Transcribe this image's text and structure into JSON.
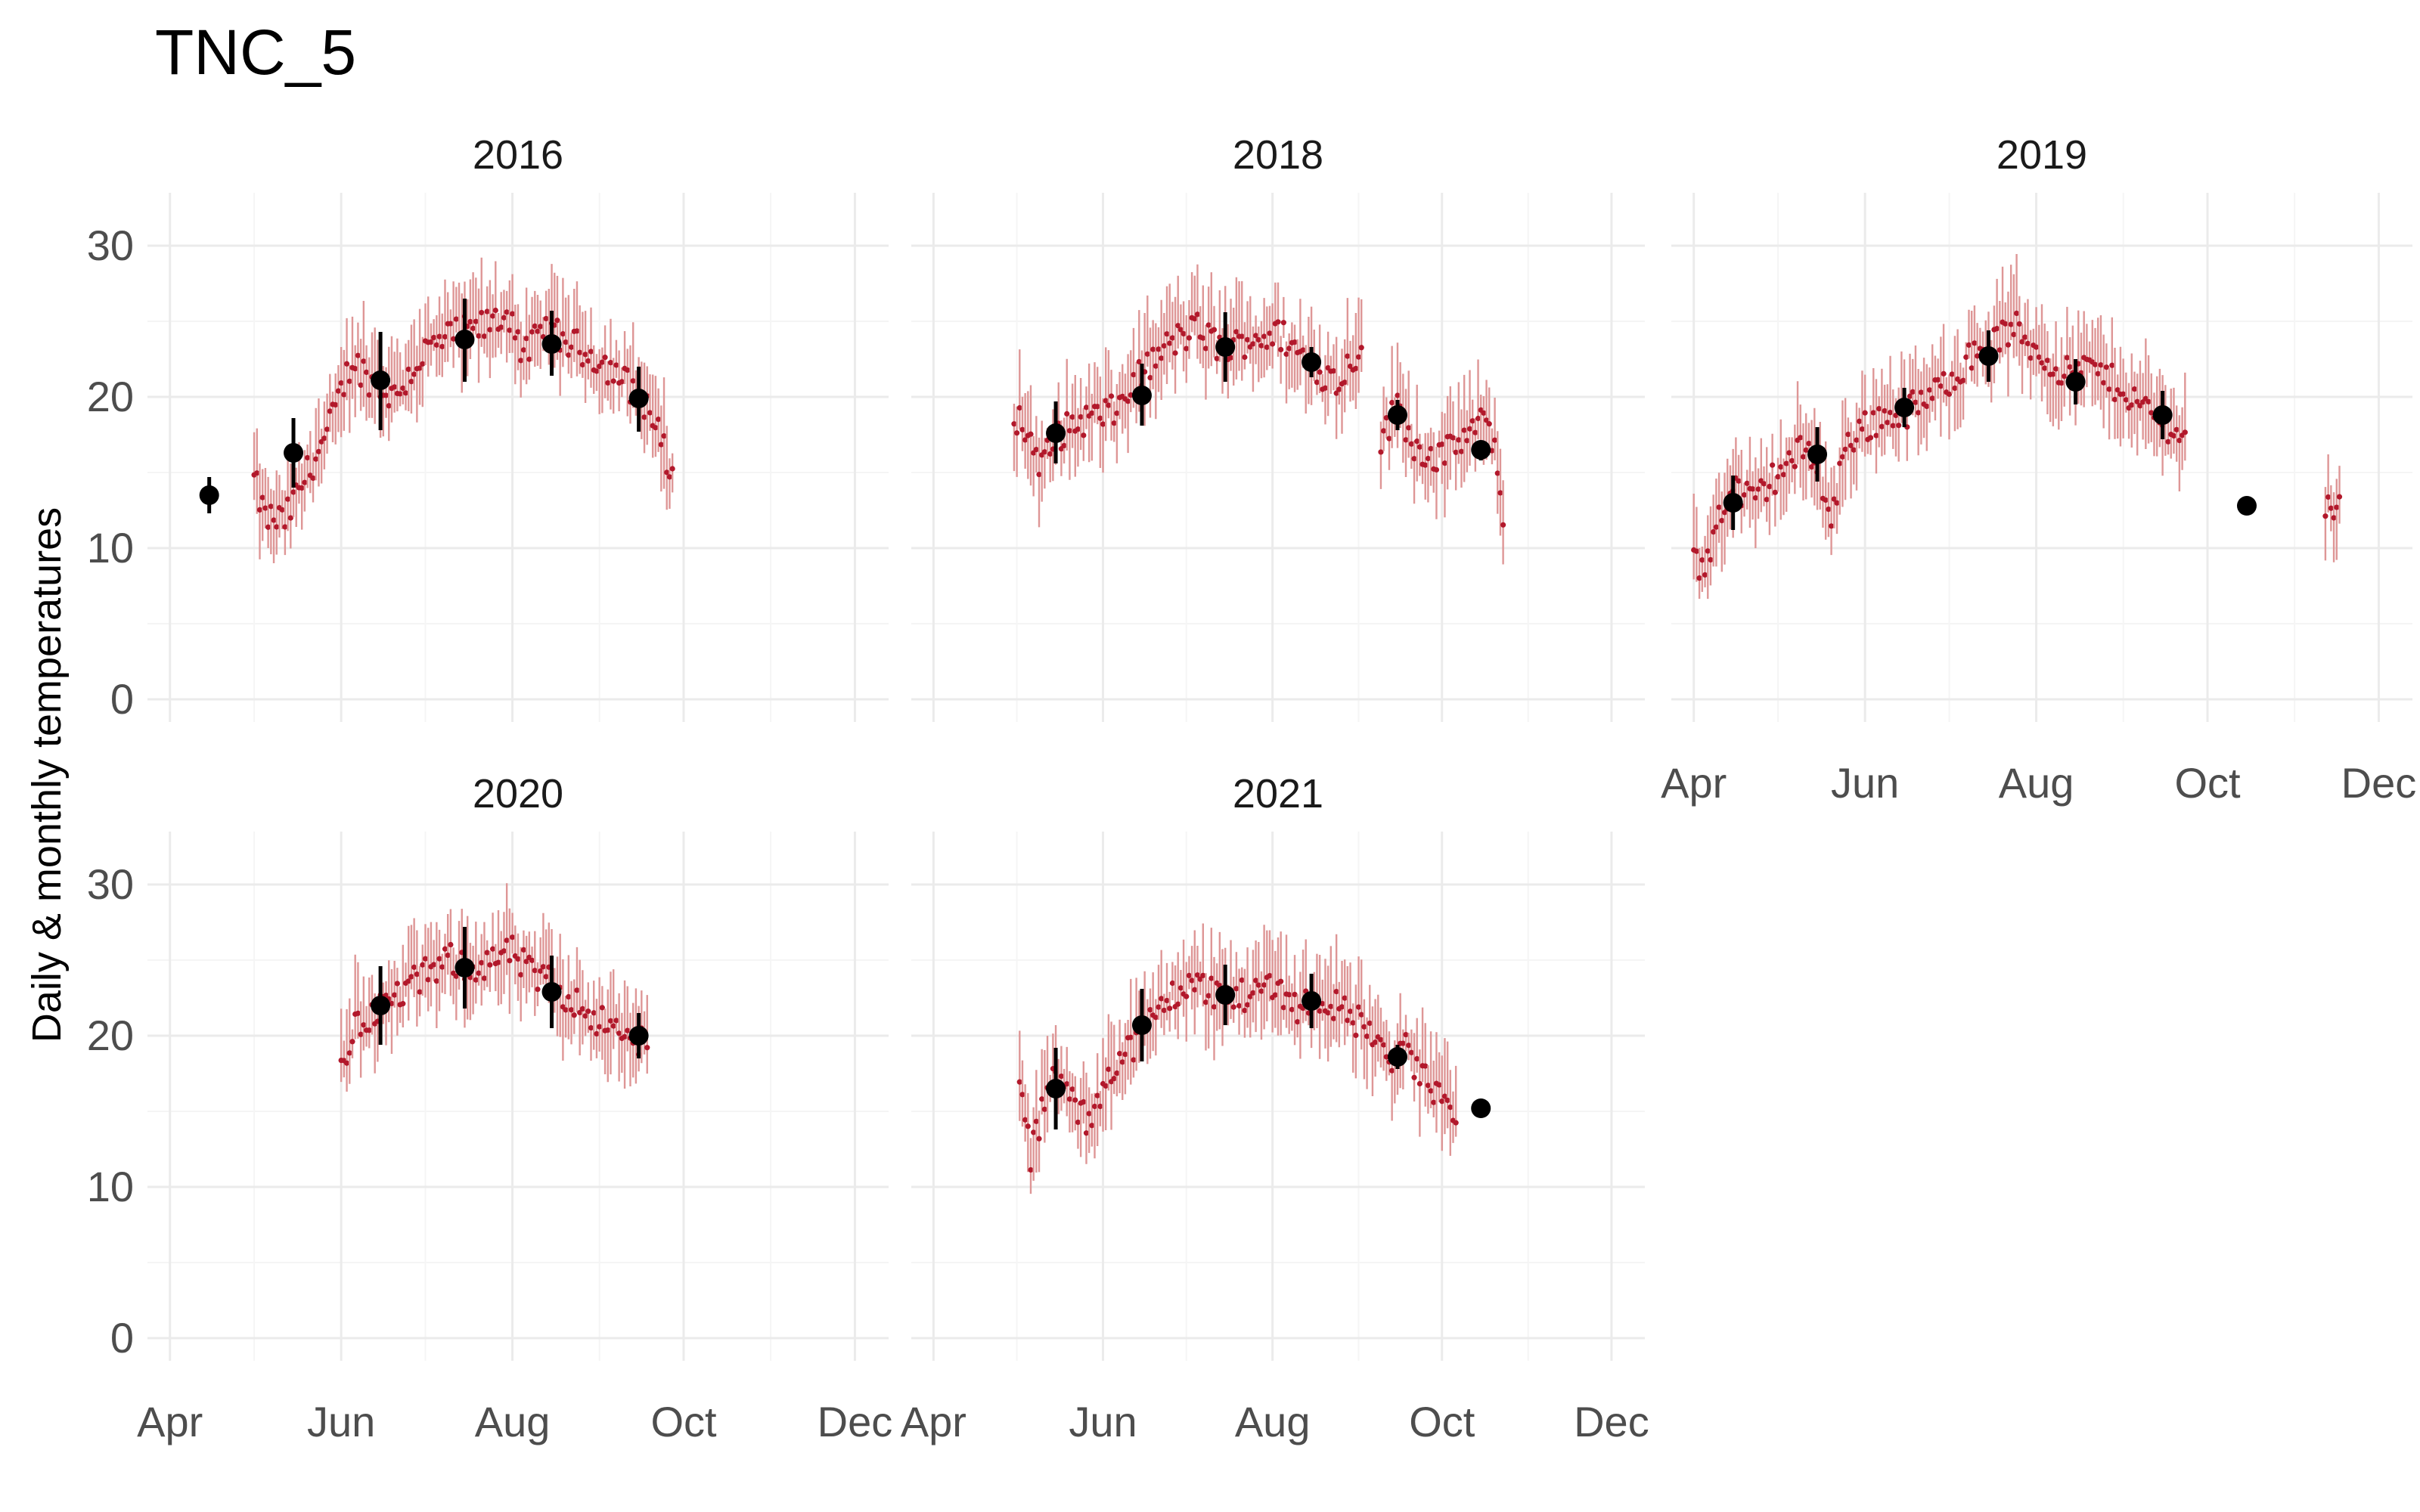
{
  "chart_data": {
    "type": "scatter",
    "title": "TNC_5",
    "xlabel": "",
    "ylabel": "Daily & monthly temperatures",
    "x_ticks": [
      "Apr",
      "Jun",
      "Aug",
      "Oct",
      "Dec"
    ],
    "y_ticks": [
      0,
      10,
      20,
      30
    ],
    "xlim": [
      "03-24",
      "12-13"
    ],
    "ylim": [
      -1.5,
      33.5
    ],
    "grid": true,
    "legend": "none",
    "colors": {
      "daily_point": "#b2182b",
      "daily_range": "#de9696",
      "monthly_point": "#000000",
      "monthly_range": "#000000",
      "grid_major": "#ebebeb",
      "grid_minor": "#f5f5f5"
    },
    "panels": [
      {
        "name": "2016",
        "daily_segments": [
          {
            "start": "05-01",
            "end": "09-27",
            "knots": [
              [
                "05-01",
                14.5
              ],
              [
                "05-05",
                12.0
              ],
              [
                "05-12",
                11.8
              ],
              [
                "05-20",
                15.0
              ],
              [
                "05-27",
                17.5
              ],
              [
                "06-05",
                22.5
              ],
              [
                "06-12",
                21.0
              ],
              [
                "06-20",
                20.0
              ],
              [
                "07-01",
                23.0
              ],
              [
                "07-10",
                24.0
              ],
              [
                "07-20",
                24.5
              ],
              [
                "08-01",
                25.5
              ],
              [
                "08-05",
                22.5
              ],
              [
                "08-12",
                24.5
              ],
              [
                "08-22",
                23.5
              ],
              [
                "09-01",
                22.5
              ],
              [
                "09-10",
                21.0
              ],
              [
                "09-18",
                19.5
              ],
              [
                "09-24",
                16.5
              ],
              [
                "09-27",
                14.5
              ]
            ]
          }
        ],
        "monthly": [
          {
            "date": "04-15",
            "mean": 13.5,
            "low": 12.3,
            "high": 14.7
          },
          {
            "date": "05-15",
            "mean": 16.3,
            "low": 14.0,
            "high": 18.6
          },
          {
            "date": "06-15",
            "mean": 21.1,
            "low": 17.8,
            "high": 24.3
          },
          {
            "date": "07-15",
            "mean": 23.8,
            "low": 21.0,
            "high": 26.5
          },
          {
            "date": "08-15",
            "mean": 23.5,
            "low": 21.4,
            "high": 25.7
          },
          {
            "date": "09-15",
            "mean": 19.9,
            "low": 17.7,
            "high": 22.0
          }
        ]
      },
      {
        "name": "2018",
        "daily_segments": [
          {
            "start": "04-30",
            "end": "09-02",
            "knots": [
              [
                "04-30",
                19.0
              ],
              [
                "05-05",
                17.5
              ],
              [
                "05-10",
                15.5
              ],
              [
                "05-16",
                17.5
              ],
              [
                "05-25",
                18.5
              ],
              [
                "06-05",
                19.0
              ],
              [
                "06-15",
                21.5
              ],
              [
                "06-25",
                23.5
              ],
              [
                "07-05",
                24.5
              ],
              [
                "07-15",
                23.0
              ],
              [
                "07-25",
                24.0
              ],
              [
                "08-05",
                24.0
              ],
              [
                "08-15",
                22.0
              ],
              [
                "08-25",
                21.0
              ],
              [
                "09-02",
                23.5
              ]
            ]
          },
          {
            "start": "09-09",
            "end": "10-23",
            "knots": [
              [
                "09-09",
                17.0
              ],
              [
                "09-15",
                19.5
              ],
              [
                "09-22",
                16.5
              ],
              [
                "10-01",
                16.0
              ],
              [
                "10-10",
                17.5
              ],
              [
                "10-18",
                18.5
              ],
              [
                "10-23",
                12.5
              ]
            ]
          }
        ],
        "monthly": [
          {
            "date": "05-15",
            "mean": 17.6,
            "low": 15.6,
            "high": 19.7
          },
          {
            "date": "06-15",
            "mean": 20.1,
            "low": 18.1,
            "high": 22.2
          },
          {
            "date": "07-15",
            "mean": 23.3,
            "low": 21.0,
            "high": 25.6
          },
          {
            "date": "08-15",
            "mean": 22.3,
            "low": 21.3,
            "high": 23.3
          },
          {
            "date": "09-15",
            "mean": 18.8,
            "low": 17.8,
            "high": 19.8
          },
          {
            "date": "10-15",
            "mean": 16.5,
            "low": 15.8,
            "high": 17.1
          }
        ]
      },
      {
        "name": "2019",
        "daily_segments": [
          {
            "start": "04-01",
            "end": "09-23",
            "knots": [
              [
                "04-01",
                10.0
              ],
              [
                "04-05",
                8.0
              ],
              [
                "04-10",
                12.5
              ],
              [
                "04-16",
                14.0
              ],
              [
                "04-22",
                13.0
              ],
              [
                "05-01",
                15.0
              ],
              [
                "05-10",
                16.5
              ],
              [
                "05-15",
                16.0
              ],
              [
                "05-20",
                11.5
              ],
              [
                "05-25",
                17.0
              ],
              [
                "06-05",
                18.5
              ],
              [
                "06-15",
                19.0
              ],
              [
                "06-25",
                20.0
              ],
              [
                "07-05",
                22.0
              ],
              [
                "07-15",
                23.5
              ],
              [
                "07-25",
                24.5
              ],
              [
                "08-01",
                23.0
              ],
              [
                "08-12",
                21.5
              ],
              [
                "08-20",
                22.0
              ],
              [
                "09-01",
                20.5
              ],
              [
                "09-10",
                19.0
              ],
              [
                "09-18",
                18.0
              ],
              [
                "09-23",
                17.0
              ]
            ]
          },
          {
            "start": "11-12",
            "end": "11-17",
            "knots": [
              [
                "11-12",
                13.2
              ],
              [
                "11-17",
                12.4
              ]
            ]
          }
        ],
        "monthly": [
          {
            "date": "04-15",
            "mean": 13.0,
            "low": 11.2,
            "high": 14.8
          },
          {
            "date": "05-15",
            "mean": 16.2,
            "low": 14.4,
            "high": 18.0
          },
          {
            "date": "06-15",
            "mean": 19.3,
            "low": 18.0,
            "high": 20.6
          },
          {
            "date": "07-15",
            "mean": 22.7,
            "low": 21.0,
            "high": 24.4
          },
          {
            "date": "08-15",
            "mean": 21.0,
            "low": 19.5,
            "high": 22.5
          },
          {
            "date": "09-15",
            "mean": 18.8,
            "low": 17.2,
            "high": 20.4
          },
          {
            "date": "10-15",
            "mean": 12.8,
            "low": 12.8,
            "high": 12.8
          }
        ]
      },
      {
        "name": "2020",
        "daily_segments": [
          {
            "start": "06-01",
            "end": "09-18",
            "knots": [
              [
                "06-01",
                18.0
              ],
              [
                "06-06",
                20.5
              ],
              [
                "06-12",
                21.5
              ],
              [
                "06-20",
                22.5
              ],
              [
                "07-01",
                24.0
              ],
              [
                "07-10",
                25.0
              ],
              [
                "07-20",
                24.5
              ],
              [
                "08-01",
                25.5
              ],
              [
                "08-08",
                24.0
              ],
              [
                "08-15",
                23.5
              ],
              [
                "08-25",
                22.0
              ],
              [
                "09-05",
                20.5
              ],
              [
                "09-12",
                19.5
              ],
              [
                "09-18",
                20.0
              ]
            ]
          }
        ],
        "monthly": [
          {
            "date": "06-15",
            "mean": 22.0,
            "low": 19.4,
            "high": 24.6
          },
          {
            "date": "07-15",
            "mean": 24.5,
            "low": 21.8,
            "high": 27.2
          },
          {
            "date": "08-15",
            "mean": 22.9,
            "low": 20.5,
            "high": 25.3
          },
          {
            "date": "09-15",
            "mean": 20.0,
            "low": 18.5,
            "high": 21.5
          }
        ]
      },
      {
        "name": "2021",
        "daily_segments": [
          {
            "start": "05-02",
            "end": "10-06",
            "knots": [
              [
                "05-02",
                16.5
              ],
              [
                "05-06",
                12.0
              ],
              [
                "05-10",
                15.0
              ],
              [
                "05-15",
                17.5
              ],
              [
                "05-20",
                16.0
              ],
              [
                "05-27",
                14.0
              ],
              [
                "06-02",
                17.5
              ],
              [
                "06-10",
                19.0
              ],
              [
                "06-20",
                21.5
              ],
              [
                "07-01",
                23.5
              ],
              [
                "07-10",
                23.0
              ],
              [
                "07-20",
                22.5
              ],
              [
                "08-01",
                23.5
              ],
              [
                "08-10",
                22.0
              ],
              [
                "08-20",
                22.5
              ],
              [
                "08-27",
                21.5
              ],
              [
                "09-05",
                20.5
              ],
              [
                "09-10",
                18.5
              ],
              [
                "09-18",
                19.0
              ],
              [
                "09-25",
                17.0
              ],
              [
                "10-01",
                16.0
              ],
              [
                "10-06",
                14.0
              ]
            ]
          }
        ],
        "monthly": [
          {
            "date": "05-15",
            "mean": 16.5,
            "low": 13.8,
            "high": 19.2
          },
          {
            "date": "06-15",
            "mean": 20.7,
            "low": 18.3,
            "high": 23.1
          },
          {
            "date": "07-15",
            "mean": 22.7,
            "low": 20.7,
            "high": 24.7
          },
          {
            "date": "08-15",
            "mean": 22.3,
            "low": 20.5,
            "high": 24.1
          },
          {
            "date": "09-15",
            "mean": 18.6,
            "low": 17.8,
            "high": 19.4
          },
          {
            "date": "10-15",
            "mean": 15.2,
            "low": 15.2,
            "high": 15.2
          }
        ]
      }
    ]
  }
}
